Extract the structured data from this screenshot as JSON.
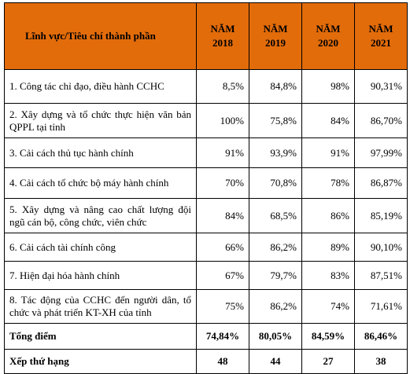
{
  "header": {
    "criteria": "Lĩnh vực/Tiêu chí thành phần",
    "years": [
      {
        "l1": "NĂM",
        "l2": "2018"
      },
      {
        "l1": "NĂM",
        "l2": "2019"
      },
      {
        "l1": "NĂM",
        "l2": "2020"
      },
      {
        "l1": "NĂM",
        "l2": "2021"
      }
    ]
  },
  "rows": [
    {
      "name": "1. Công tác chỉ đạo, điều hành CCHC",
      "values": [
        "8,5%",
        "84,8%",
        "98%",
        "90,31%"
      ]
    },
    {
      "name": "2. Xây dựng và tổ chức thực hiện văn bản QPPL tại tỉnh",
      "values": [
        "100%",
        "75,8%",
        "84%",
        "86,70%"
      ]
    },
    {
      "name": "3. Cải cách thủ tục hành chính",
      "values": [
        "91%",
        "93,9%",
        "91%",
        "97,99%"
      ]
    },
    {
      "name": "4. Cải cách tổ chức bộ máy hành chính",
      "values": [
        "70%",
        "70,8%",
        "78%",
        "86,87%"
      ]
    },
    {
      "name": "5. Xây dựng và nâng cao chất lượng đội ngũ cán bộ, công chức, viên chức",
      "values": [
        "84%",
        "68,5%",
        "86%",
        "85,19%"
      ]
    },
    {
      "name": "6. Cải cách tài chính công",
      "values": [
        "66%",
        "86,2%",
        "89%",
        "90,10%"
      ]
    },
    {
      "name": "7. Hiện đại hóa hành chính",
      "values": [
        "67%",
        "79,7%",
        "83%",
        "87,51%"
      ]
    },
    {
      "name": "8. Tác động của CCHC đến người dân, tổ chức và phát triển KT-XH của tỉnh",
      "values": [
        "75%",
        "86,2%",
        "74%",
        "71,61%"
      ]
    }
  ],
  "total": {
    "label": "Tổng điểm",
    "values": [
      "74,84%",
      "80,05%",
      "84,59%",
      "86,46%"
    ]
  },
  "rank": {
    "label": "Xếp thứ hạng",
    "values": [
      "48",
      "44",
      "27",
      "38"
    ]
  }
}
